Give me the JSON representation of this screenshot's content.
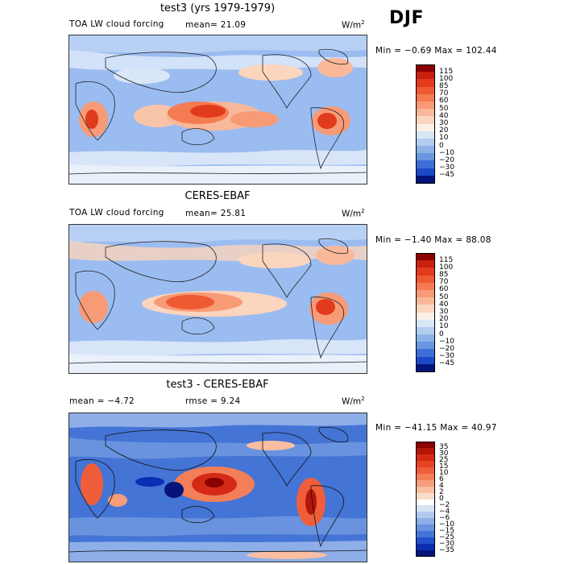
{
  "season": "DJF",
  "panels": [
    {
      "title": "test3 (yrs 1979-1979)",
      "left_text": "TOA LW cloud forcing",
      "stat_text": "mean=  21.09",
      "units": "W/m",
      "units_exp": "2",
      "minmax": "Min =  −0.69 Max = 102.44",
      "colorbar": {
        "labels": [
          "115",
          "100",
          "85",
          "70",
          "60",
          "50",
          "40",
          "30",
          "20",
          "10",
          "0",
          "−10",
          "−20",
          "−30",
          "−45"
        ],
        "colors": [
          "#8b0000",
          "#c8200e",
          "#e23a1c",
          "#ee5a32",
          "#f47b52",
          "#f79a76",
          "#f9b89a",
          "#fbd5bd",
          "#fdf0e6",
          "#d9e6f7",
          "#b3cdf0",
          "#8db2e8",
          "#6a95df",
          "#3f6fd6",
          "#1c49c8",
          "#05147a"
        ]
      }
    },
    {
      "title": "CERES-EBAF",
      "left_text": "TOA LW cloud forcing",
      "stat_text": "mean=  25.81",
      "units": "W/m",
      "units_exp": "2",
      "minmax": "Min =  −1.40 Max =  88.08",
      "colorbar": {
        "labels": [
          "115",
          "100",
          "85",
          "70",
          "60",
          "50",
          "40",
          "30",
          "20",
          "10",
          "0",
          "−10",
          "−20",
          "−30",
          "−45"
        ],
        "colors": [
          "#8b0000",
          "#c8200e",
          "#e23a1c",
          "#ee5a32",
          "#f47b52",
          "#f79a76",
          "#f9b89a",
          "#fbd5bd",
          "#fdf0e6",
          "#d9e6f7",
          "#b3cdf0",
          "#8db2e8",
          "#6a95df",
          "#3f6fd6",
          "#1c49c8",
          "#05147a"
        ]
      }
    },
    {
      "title": "test3 - CERES-EBAF",
      "left_text": "mean =  −4.72",
      "stat_text": "rmse =   9.24",
      "units": "W/m",
      "units_exp": "2",
      "minmax": "Min = −41.15 Max =  40.97",
      "colorbar": {
        "labels": [
          "35",
          "30",
          "25",
          "15",
          "10",
          "6",
          "4",
          "2",
          "0",
          "−2",
          "−4",
          "−6",
          "−10",
          "−15",
          "−25",
          "−30",
          "−35"
        ],
        "colors": [
          "#8b0000",
          "#b51509",
          "#d42a15",
          "#e64325",
          "#ef5e3a",
          "#f47e58",
          "#f79d7c",
          "#f9bda2",
          "#fbdccb",
          "#ffffff",
          "#d6e3f6",
          "#b1c9ef",
          "#8daee7",
          "#6993de",
          "#4474d5",
          "#2150c9",
          "#0a2fb3",
          "#05147a"
        ]
      }
    }
  ]
}
